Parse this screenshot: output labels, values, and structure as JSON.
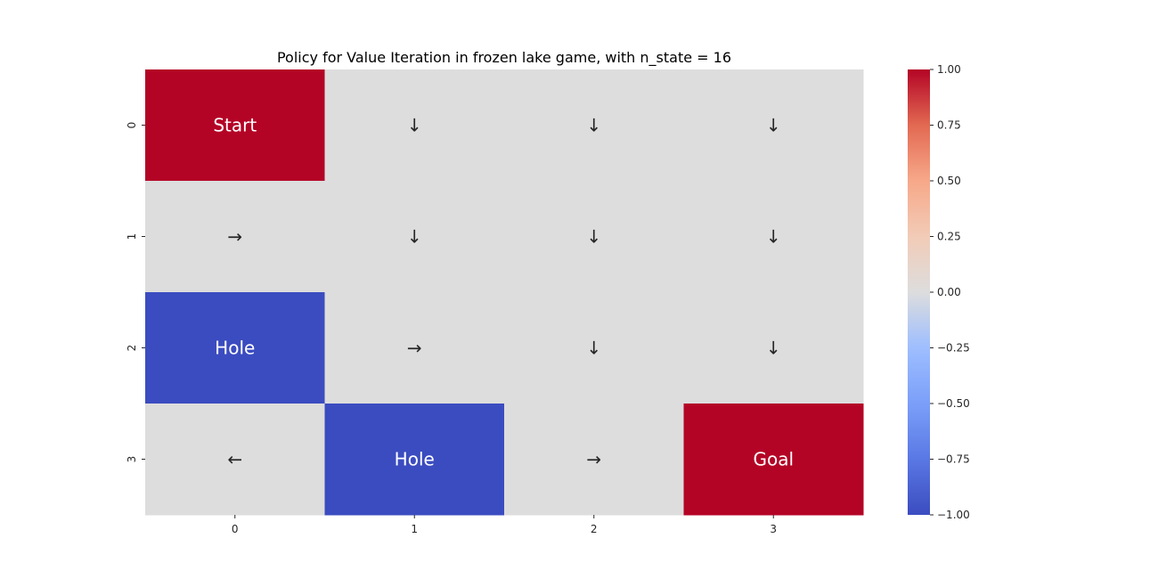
{
  "chart_data": {
    "type": "heatmap",
    "title": "Policy for Value Iteration in frozen lake game, with n_state = 16",
    "x_ticks": [
      "0",
      "1",
      "2",
      "3"
    ],
    "y_ticks": [
      "0",
      "1",
      "2",
      "3"
    ],
    "values": [
      [
        1,
        0,
        0,
        0
      ],
      [
        0,
        0,
        0,
        0
      ],
      [
        -1,
        0,
        0,
        0
      ],
      [
        0,
        -1,
        0,
        1
      ]
    ],
    "annotations": [
      [
        "Start",
        "↓",
        "↓",
        "↓"
      ],
      [
        "→",
        "↓",
        "↓",
        "↓"
      ],
      [
        "Hole",
        "→",
        "↓",
        "↓"
      ],
      [
        "←",
        "Hole",
        "→",
        "Goal"
      ]
    ],
    "colormap": "coolwarm",
    "vmin": -1,
    "vmax": 1,
    "colorbar_ticks": [
      "1.00",
      "0.75",
      "0.50",
      "0.25",
      "0.00",
      "−0.25",
      "−0.50",
      "−0.75",
      "−1.00"
    ],
    "colors": {
      "high": "#b40426",
      "neutral": "#dddddd",
      "low": "#3b4cc0"
    }
  }
}
